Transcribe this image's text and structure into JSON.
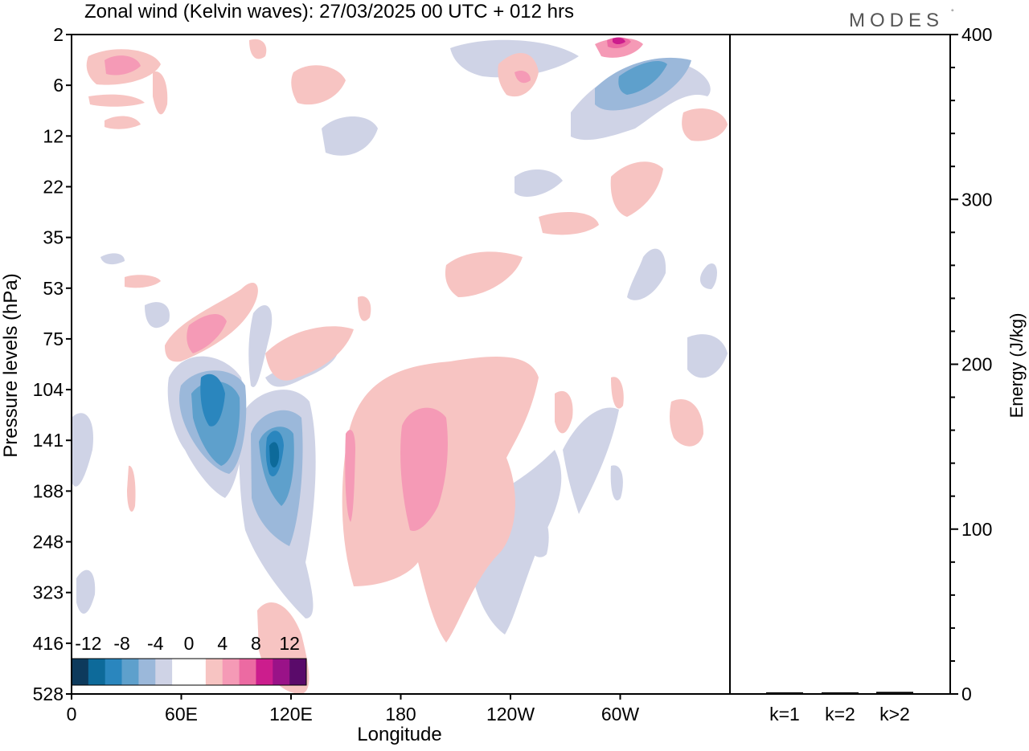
{
  "title": "Zonal wind (Kelvin waves):  27/03/2025  00 UTC  + 012 hrs",
  "brand": "MODES",
  "brand_mark": "°",
  "chart_data": [
    {
      "type": "heatmap",
      "title": "Zonal wind (Kelvin waves):  27/03/2025  00 UTC  + 012 hrs",
      "xlabel": "Longitude",
      "ylabel": "Pressure levels (hPa)",
      "x_ticks": [
        "0",
        "60E",
        "120E",
        "180",
        "120W",
        "60W"
      ],
      "x_tick_degrees": [
        0,
        60,
        120,
        180,
        240,
        300
      ],
      "xlim": [
        0,
        360
      ],
      "y_ticks": [
        "2",
        "6",
        "12",
        "22",
        "35",
        "53",
        "75",
        "104",
        "141",
        "188",
        "248",
        "323",
        "416",
        "528"
      ],
      "y_scale": "pressure levels, top to bottom",
      "colorbar": {
        "labels": [
          "-12",
          "-8",
          "-4",
          "0",
          "4",
          "8",
          "12"
        ],
        "colors": [
          "#0d3a5c",
          "#0d6a9a",
          "#2a86be",
          "#5ea0cc",
          "#9bb8da",
          "#cfd3e6",
          "#ffffff",
          "#ffffff",
          "#f7c4c2",
          "#f59ab6",
          "#ec6aa2",
          "#cc1d8d",
          "#9a1288",
          "#5a0a6a"
        ],
        "placement": "bottom-left"
      },
      "features": [
        {
          "sign": "positive",
          "level": 1,
          "lon": 160,
          "p_top": "104",
          "p_bottom": "323"
        },
        {
          "sign": "positive",
          "level": 2,
          "lon": 188,
          "p_top": "104",
          "p_bottom": "248"
        },
        {
          "sign": "negative",
          "level": 4,
          "lon": 76,
          "p_top": "104",
          "p_bottom": "141"
        },
        {
          "sign": "negative",
          "level": 4,
          "lon": 111,
          "p_top": "104",
          "p_bottom": "188"
        },
        {
          "sign": "positive",
          "level": 2,
          "lon": 70,
          "p_top": "53",
          "p_bottom": "75"
        },
        {
          "sign": "negative",
          "level": 3,
          "lon": 305,
          "p_top": "2",
          "p_bottom": "12"
        },
        {
          "sign": "positive",
          "level": 4,
          "lon": 295,
          "p_top": "2",
          "p_bottom": "2"
        }
      ]
    },
    {
      "type": "bar",
      "ylabel": "Energy (J/kg)",
      "categories": [
        "k=1",
        "k=2",
        "k>2"
      ],
      "values": [
        0.5,
        0.5,
        0.8
      ],
      "ylim": [
        0,
        400
      ],
      "y_ticks": [
        "0",
        "100",
        "200",
        "300",
        "400"
      ]
    }
  ]
}
